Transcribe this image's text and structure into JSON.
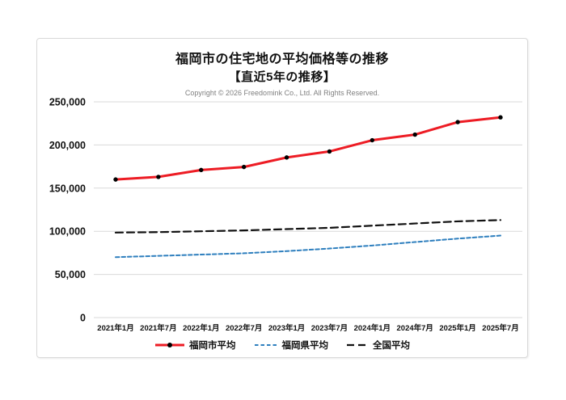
{
  "card": {
    "title": "福岡市の住宅地の平均価格等の推移",
    "subtitle": "【直近5年の推移】",
    "copyright": "Copyright © 2026 Freedomink Co., Ltd. All Rights Reserved."
  },
  "chart_data": {
    "type": "line",
    "title": "福岡市の住宅地の平均価格等の推移",
    "subtitle": "【直近5年の推移】",
    "categories": [
      "2021年1月",
      "2021年7月",
      "2022年1月",
      "2022年7月",
      "2023年1月",
      "2023年7月",
      "2024年1月",
      "2024年7月",
      "2025年1月",
      "2025年7月"
    ],
    "series": [
      {
        "name": "福岡市平均",
        "values": [
          160000,
          163000,
          171000,
          174500,
          185500,
          192500,
          205500,
          212000,
          226500,
          232000
        ],
        "color": "#ed1c24",
        "style": "solid",
        "stroke_width": 3,
        "marker": true,
        "marker_color": "#000000"
      },
      {
        "name": "福岡県平均",
        "values": [
          70000,
          71500,
          73000,
          74500,
          77000,
          80000,
          83500,
          87500,
          91500,
          95000
        ],
        "color": "#2e7fbe",
        "style": "dashed-short",
        "stroke_width": 2,
        "marker": false
      },
      {
        "name": "全国平均",
        "values": [
          98500,
          99000,
          100000,
          101000,
          102500,
          104000,
          106500,
          109000,
          111500,
          113000
        ],
        "color": "#111111",
        "style": "dashed-long",
        "stroke_width": 2.2,
        "marker": false
      }
    ],
    "ylim": [
      0,
      250000
    ],
    "ytick_step": 50000,
    "ytick_labels": [
      "0",
      "50,000",
      "100,000",
      "150,000",
      "200,000",
      "250,000"
    ],
    "grid": true,
    "grid_color": "#d9d9d9",
    "legend_position": "bottom"
  }
}
